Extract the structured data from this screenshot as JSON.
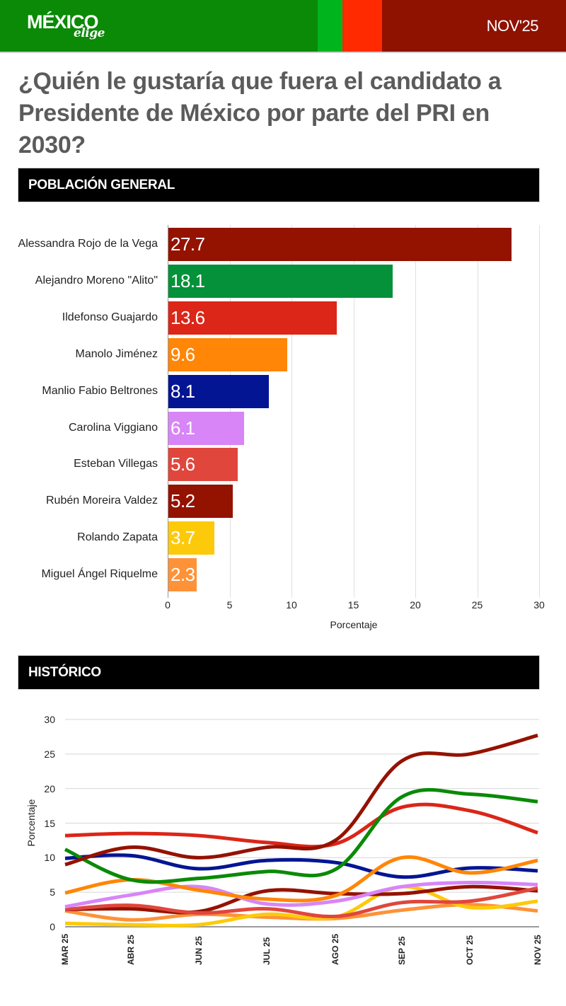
{
  "header": {
    "logo_main": "MÉXICO",
    "logo_sub": "elige",
    "edition": "NOV'25",
    "colors": [
      "#0a8a06",
      "#00b41e",
      "#ff2a00",
      "#8f1100"
    ]
  },
  "title": "¿Quién le gustaría que fuera el candidato a Presidente de México por parte del PRI en 2030?",
  "sections": {
    "general": "POBLACIÓN GENERAL",
    "historic": "HISTÓRICO"
  },
  "chart_data": [
    {
      "type": "bar",
      "orientation": "horizontal",
      "title": "POBLACIÓN GENERAL",
      "xlabel": "Porcentaje",
      "ylabel": "",
      "xlim": [
        0,
        30
      ],
      "xticks": [
        "0",
        "5",
        "10",
        "15",
        "20",
        "25",
        "30"
      ],
      "grid": true,
      "categories": [
        "Alessandra Rojo de la Vega",
        "Alejandro Moreno \"Alito\"",
        "Ildefonso Guajardo",
        "Manolo Jiménez",
        "Manlio Fabio Beltrones",
        "Carolina Viggiano",
        "Esteban Villegas",
        "Rubén Moreira Valdez",
        "Rolando Zapata",
        "Miguel Ángel Riquelme"
      ],
      "values": [
        27.7,
        18.1,
        13.6,
        9.6,
        8.1,
        6.1,
        5.6,
        5.2,
        3.7,
        2.3
      ],
      "value_labels": [
        "27.7",
        "18.1",
        "13.6",
        "9.6",
        "8.1",
        "6.1",
        "5.6",
        "5.2",
        "3.7",
        "2.3"
      ],
      "colors": [
        "#941200",
        "#04913a",
        "#db2618",
        "#ff8606",
        "#041593",
        "#d885f7",
        "#e0463c",
        "#941200",
        "#fdca0b",
        "#fe9238"
      ]
    },
    {
      "type": "line",
      "title": "HISTÓRICO",
      "xlabel": "",
      "ylabel": "Porcentaje",
      "ylim": [
        0,
        30
      ],
      "yticks": [
        "0",
        "5",
        "10",
        "15",
        "20",
        "25",
        "30"
      ],
      "grid": true,
      "legend": "none",
      "categories": [
        "MAR 25",
        "ABR 25",
        "JUN 25",
        "JUL 25",
        "AGO 25",
        "SEP 25",
        "OCT 25",
        "NOV 25"
      ],
      "series": [
        {
          "name": "Alessandra Rojo de la Vega",
          "color": "#941200",
          "values": [
            9.0,
            11.5,
            10.0,
            11.5,
            12.5,
            24.0,
            25.0,
            27.7
          ]
        },
        {
          "name": "Alejandro Moreno \"Alito\"",
          "color": "#0a8a06",
          "values": [
            11.2,
            6.8,
            7.0,
            8.0,
            8.3,
            18.8,
            19.2,
            18.1
          ]
        },
        {
          "name": "Ildefonso Guajardo",
          "color": "#db2618",
          "values": [
            13.2,
            13.5,
            13.2,
            12.2,
            12.0,
            17.3,
            16.8,
            13.6
          ]
        },
        {
          "name": "Manolo Jiménez",
          "color": "#ff8606",
          "values": [
            4.9,
            6.8,
            5.3,
            4.0,
            4.5,
            10.0,
            7.8,
            9.6
          ]
        },
        {
          "name": "Manlio Fabio Beltrones",
          "color": "#041593",
          "values": [
            9.9,
            10.3,
            8.4,
            9.6,
            9.3,
            7.2,
            8.5,
            8.1
          ]
        },
        {
          "name": "Carolina Viggiano",
          "color": "#d885f7",
          "values": [
            2.9,
            4.6,
            5.8,
            3.3,
            3.7,
            5.8,
            6.4,
            6.1
          ]
        },
        {
          "name": "Esteban Villegas",
          "color": "#e0463c",
          "values": [
            2.5,
            3.1,
            2.0,
            2.6,
            1.5,
            3.5,
            3.7,
            5.6
          ]
        },
        {
          "name": "Rubén Moreira Valdez",
          "color": "#941200",
          "values": [
            2.5,
            2.6,
            2.2,
            5.2,
            4.8,
            4.8,
            5.8,
            5.2
          ]
        },
        {
          "name": "Rolando Zapata",
          "color": "#fdca0b",
          "values": [
            0.5,
            0.3,
            0.3,
            1.8,
            1.4,
            5.8,
            2.8,
            3.7
          ]
        },
        {
          "name": "Miguel Ángel Riquelme",
          "color": "#fe9238",
          "values": [
            2.3,
            1.0,
            1.8,
            1.4,
            1.2,
            2.4,
            3.2,
            2.3
          ]
        }
      ]
    }
  ]
}
